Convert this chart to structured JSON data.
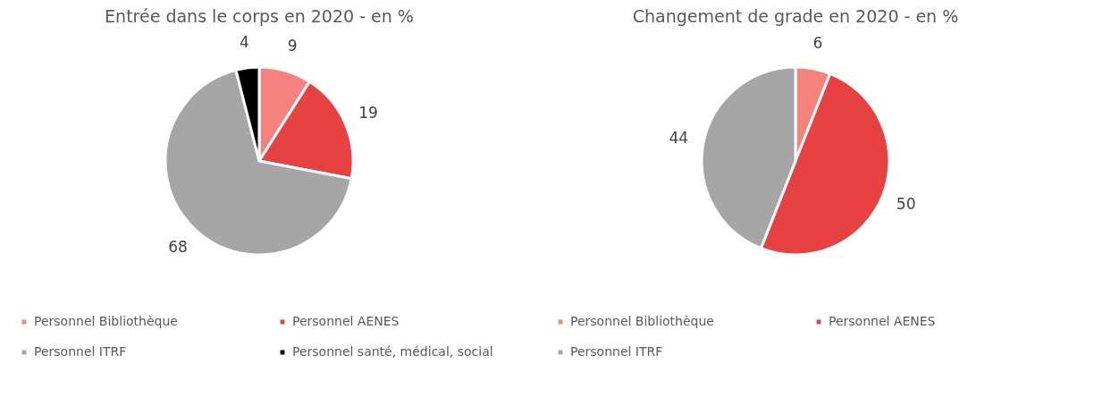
{
  "chart_data": [
    {
      "type": "pie",
      "title": "Entrée dans le corps en 2020 - en %",
      "categories": [
        "Personnel Bibliothèque",
        "Personnel AENES",
        "Personnel ITRF",
        "Personnel santé, médical, social"
      ],
      "values": [
        9,
        19,
        68,
        4
      ],
      "colors": [
        "#f4837d",
        "#e84142",
        "#a6a6a6",
        "#000000"
      ],
      "data_labels": true,
      "legend": "bottom"
    },
    {
      "type": "pie",
      "title": "Changement de grade en 2020 - en %",
      "categories": [
        "Personnel Bibliothèque",
        "Personnel AENES",
        "Personnel ITRF"
      ],
      "values": [
        6,
        50,
        44
      ],
      "colors": [
        "#f4837d",
        "#e84142",
        "#a6a6a6"
      ],
      "data_labels": true,
      "legend": "bottom"
    }
  ]
}
